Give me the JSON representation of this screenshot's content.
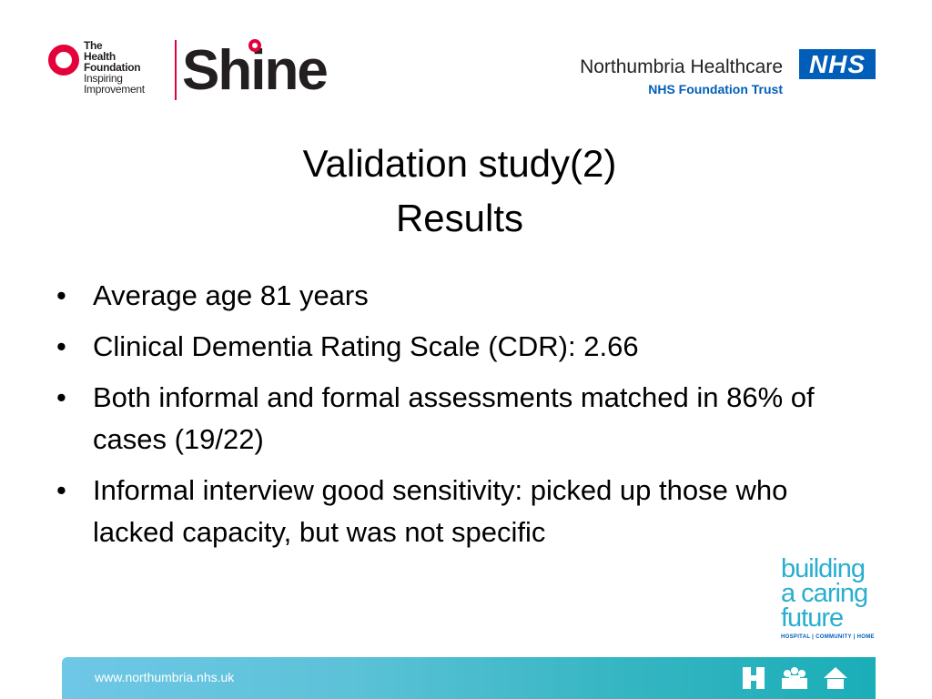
{
  "logos": {
    "health_foundation": {
      "lines": [
        "The",
        "Health",
        "Foundation",
        "Inspiring",
        "Improvement"
      ]
    },
    "shine": {
      "text": "Shine"
    },
    "northumbria": {
      "name": "Northumbria Healthcare",
      "trust": "NHS Foundation Trust"
    },
    "nhs": {
      "text": "NHS"
    }
  },
  "slide": {
    "title_line1": "Validation study(2)",
    "title_line2": "Results",
    "bullet_symbol": "•",
    "bullets": [
      "Average age 81 years",
      "Clinical Dementia Rating Scale (CDR): 2.66",
      "Both informal and formal assessments matched in 86% of cases (19/22)",
      "Informal interview good sensitivity: picked up those who lacked capacity, but was not specific"
    ]
  },
  "campaign": {
    "line1": "building",
    "line2": "a caring",
    "line3": "future",
    "subline": "HOSPITAL | COMMUNITY | HOME"
  },
  "footer": {
    "url": "www.northumbria.nhs.uk",
    "icons": [
      "hospital-icon",
      "community-icon",
      "home-icon"
    ]
  },
  "colors": {
    "nhs_blue": "#005eb8",
    "foundation_red": "#e4003b",
    "campaign_teal": "#2aaecf",
    "footer_teal": "#34b5c2"
  }
}
